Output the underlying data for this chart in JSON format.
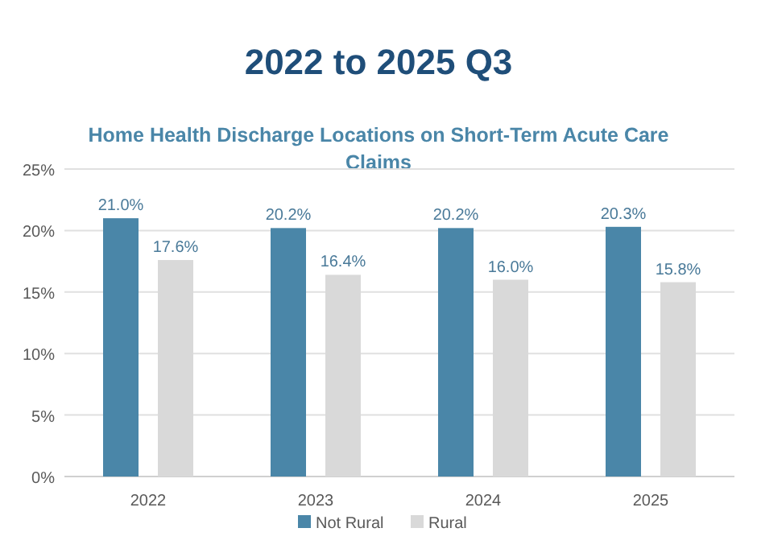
{
  "chart_data": {
    "type": "bar",
    "title": "2022 to 2025 Q3",
    "subtitle": "Home Health Discharge Locations on Short-Term Acute Care Claims",
    "categories": [
      "2022",
      "2023",
      "2024",
      "2025"
    ],
    "series": [
      {
        "name": "Not Rural",
        "color": "#4a86a8",
        "values": [
          21.0,
          20.2,
          20.2,
          20.3
        ],
        "value_labels": [
          "21.0%",
          "20.2%",
          "20.2%",
          "20.3%"
        ]
      },
      {
        "name": "Rural",
        "color": "#d9d9d9",
        "values": [
          17.6,
          16.4,
          16.0,
          15.8
        ],
        "value_labels": [
          "17.6%",
          "16.4%",
          "16.0%",
          "15.8%"
        ]
      }
    ],
    "ylim": [
      0,
      25
    ],
    "yticks": [
      {
        "value": 0,
        "label": "0%"
      },
      {
        "value": 5,
        "label": "5%"
      },
      {
        "value": 10,
        "label": "10%"
      },
      {
        "value": 15,
        "label": "15%"
      },
      {
        "value": 20,
        "label": "20%"
      },
      {
        "value": 25,
        "label": "25%"
      }
    ],
    "grid": "y",
    "legend": "bottom"
  }
}
